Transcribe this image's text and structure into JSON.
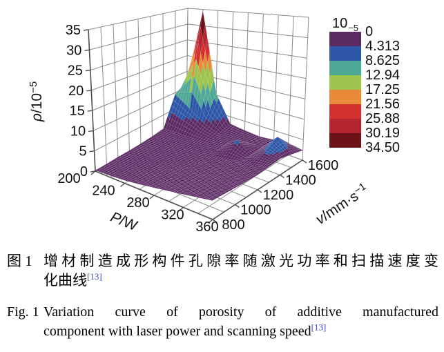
{
  "figure": {
    "caption_zh": {
      "label": "图 1",
      "line1": "增材制造成形构件孔隙率随激光功率和扫描速度变",
      "line2": "化曲线",
      "ref_sup": "[13]"
    },
    "caption_en": {
      "label": "Fig. 1",
      "line1": "Variation curve of porosity of additive manufactured",
      "line2": "component with laser power and scanning speed",
      "ref_sup": "[13]"
    },
    "ref_color": "#3c47c6"
  },
  "legend": {
    "title_base": "10",
    "title_sup": "−5",
    "boundaries": [
      "0",
      "4.313",
      "8.625",
      "12.94",
      "17.25",
      "21.56",
      "25.88",
      "30.19",
      "34.50"
    ],
    "colors": [
      "#5b2a63",
      "#2d56a7",
      "#4fa896",
      "#9cc44e",
      "#e98a3a",
      "#d23130",
      "#b3262f",
      "#6d1219"
    ]
  },
  "chart_data": {
    "type": "surface3d",
    "title": "",
    "x_axis": {
      "name": "laser-power",
      "label_var": "P",
      "label_main": "/W",
      "label_sup": "",
      "values": [
        200,
        220,
        240,
        260,
        280,
        300,
        320,
        340,
        360
      ],
      "tick_values": [
        200,
        240,
        280,
        320,
        360
      ],
      "tick_labels": [
        "200",
        "240",
        "280",
        "320",
        "360"
      ]
    },
    "y_axis": {
      "name": "scanning-speed",
      "label_var": "v",
      "label_main": "/mm·s",
      "label_sup": "−1",
      "values": [
        800,
        900,
        1000,
        1100,
        1200,
        1300,
        1400,
        1500,
        1600
      ],
      "tick_values": [
        800,
        1000,
        1200,
        1400,
        1600
      ],
      "tick_labels": [
        "800",
        "1000",
        "1200",
        "1400",
        "1600"
      ]
    },
    "z_axis": {
      "name": "porosity",
      "label_var": "ρ",
      "label_main": "/10",
      "label_sup": "−5",
      "ticks": [
        0,
        5,
        10,
        15,
        20,
        25,
        30,
        35
      ],
      "range": [
        0,
        34.5
      ]
    },
    "z_grid_rows": "scanning speed v = 800 to 1600 step 100 (mm/s)",
    "z_grid_cols": "laser power P = 200 to 360 step 20 (W)",
    "z_grid": [
      [
        0.2,
        0.4,
        0.7,
        1.2,
        1.8,
        2.4,
        3.0,
        3.6,
        4.2
      ],
      [
        0.2,
        0.4,
        0.7,
        1.1,
        1.6,
        2.2,
        2.8,
        3.4,
        4.0
      ],
      [
        0.3,
        0.4,
        0.6,
        1.0,
        1.5,
        2.0,
        2.6,
        3.2,
        3.8
      ],
      [
        0.3,
        0.5,
        0.6,
        0.9,
        1.3,
        1.8,
        2.4,
        3.0,
        3.6
      ],
      [
        0.4,
        0.5,
        0.7,
        0.9,
        1.2,
        1.7,
        2.3,
        2.9,
        3.5
      ],
      [
        0.6,
        0.7,
        0.8,
        1.0,
        1.3,
        1.8,
        2.5,
        3.1,
        3.7
      ],
      [
        1.0,
        1.1,
        1.2,
        1.4,
        1.8,
        4.8,
        2.4,
        4.6,
        3.9
      ],
      [
        9.5,
        6.5,
        3.5,
        2.0,
        2.2,
        2.4,
        2.6,
        6.3,
        3.2
      ],
      [
        12.0,
        34.5,
        10.5,
        3.0,
        2.5,
        2.2,
        2.6,
        3.0,
        2.4
      ]
    ],
    "peak": {
      "P": 220,
      "v": 1600,
      "z": 34.5
    },
    "grid_on": true,
    "legend_position": "top-right"
  }
}
